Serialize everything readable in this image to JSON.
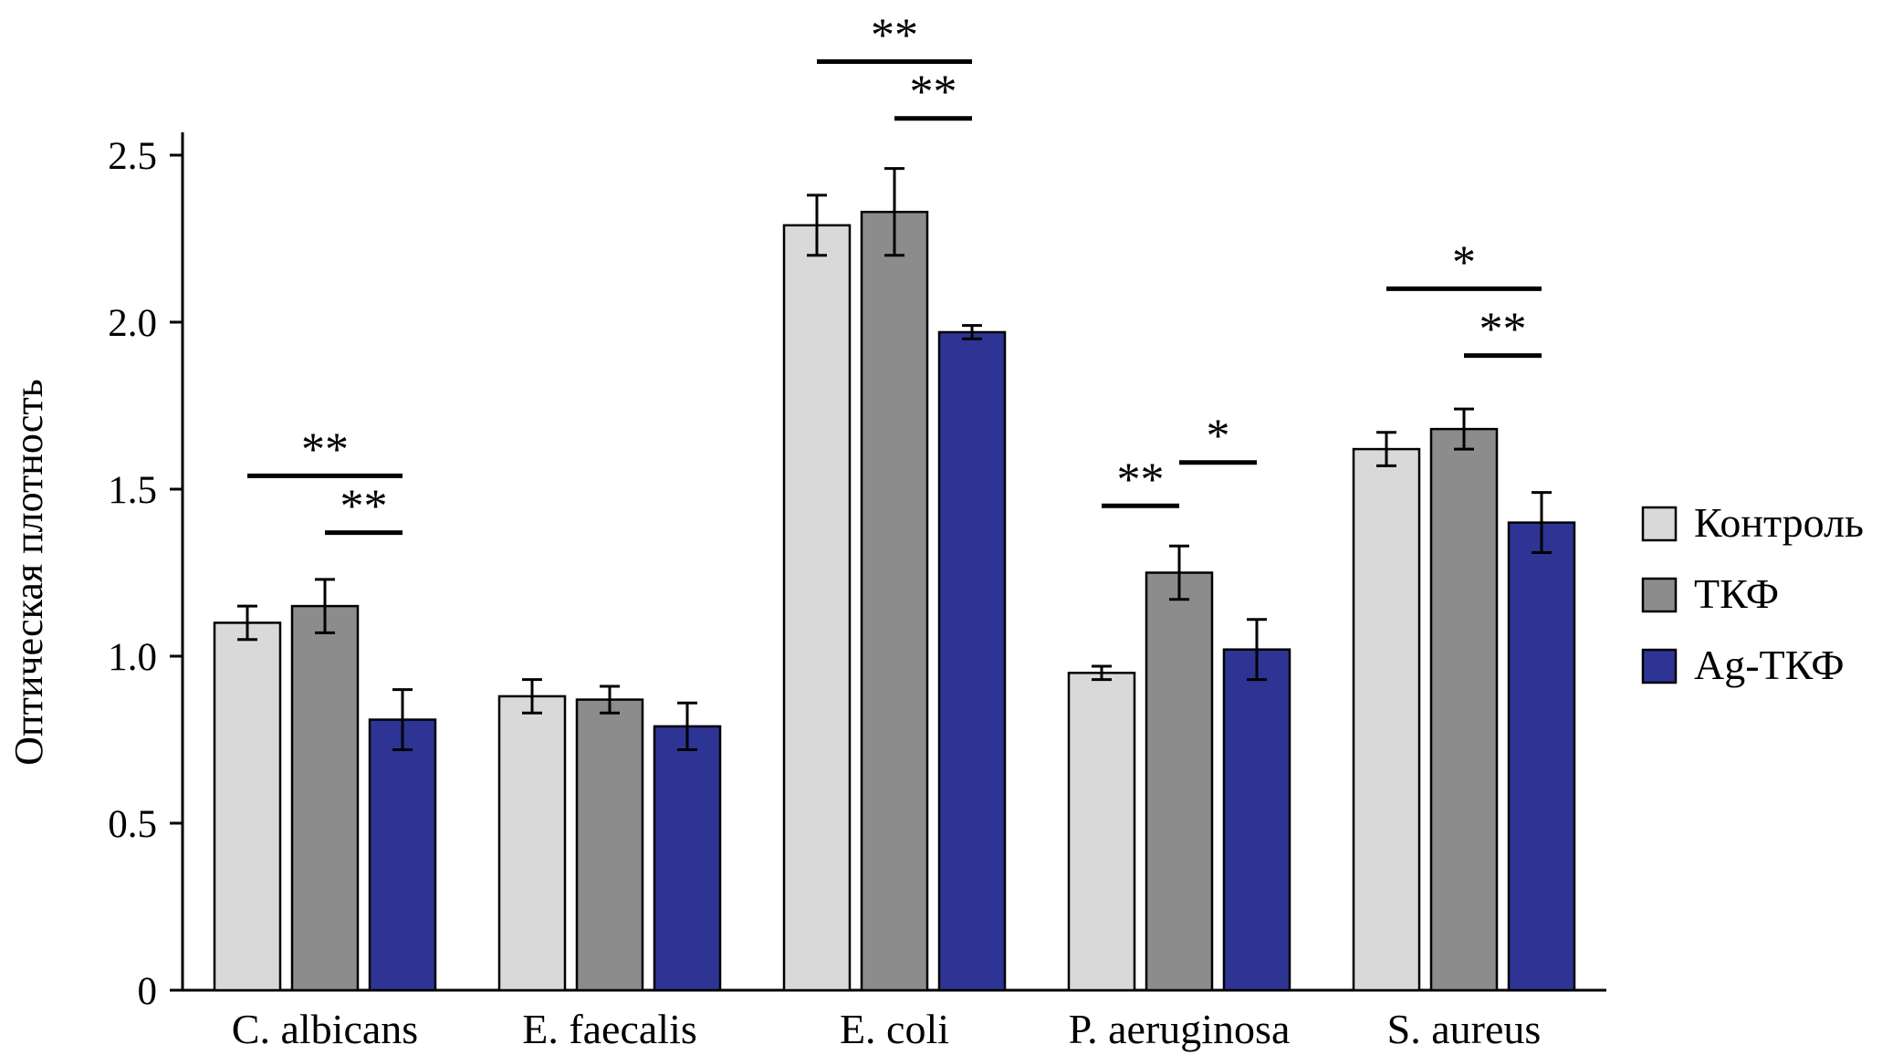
{
  "figure": {
    "background": "#ffffff",
    "axis_color": "#000000"
  },
  "chart_data": {
    "type": "bar",
    "title": "",
    "xlabel": "",
    "ylabel": "Оптическая плотность",
    "ylim": [
      0,
      2.5
    ],
    "yticks": [
      0,
      0.5,
      1.0,
      1.5,
      2.0,
      2.5
    ],
    "ytick_labels": [
      "0",
      "0.5",
      "1.0",
      "1.5",
      "2.0",
      "2.5"
    ],
    "grid": false,
    "legend_position": "right",
    "categories": [
      "C. albicans",
      "E. faecalis",
      "E. coli",
      "P. aeruginosa",
      "S. aureus"
    ],
    "series": [
      {
        "name": "Контроль",
        "color": "#d9d9d9",
        "values": [
          1.1,
          0.88,
          2.29,
          0.95,
          1.62
        ],
        "errors": [
          0.05,
          0.05,
          0.09,
          0.02,
          0.05
        ]
      },
      {
        "name": "ТКФ",
        "color": "#8c8c8c",
        "values": [
          1.15,
          0.87,
          2.33,
          1.25,
          1.68
        ],
        "errors": [
          0.08,
          0.04,
          0.13,
          0.08,
          0.06
        ]
      },
      {
        "name": "Ag-ТКФ",
        "color": "#2d3494",
        "values": [
          0.81,
          0.79,
          1.97,
          1.02,
          1.4
        ],
        "errors": [
          0.09,
          0.07,
          0.02,
          0.09,
          0.09
        ]
      }
    ],
    "significance": [
      {
        "category": 0,
        "from": 0,
        "to": 2,
        "y": 1.54,
        "label": "**"
      },
      {
        "category": 0,
        "from": 1,
        "to": 2,
        "y": 1.37,
        "label": "**"
      },
      {
        "category": 2,
        "from": 0,
        "to": 2,
        "y": 2.78,
        "label": "**"
      },
      {
        "category": 2,
        "from": 1,
        "to": 2,
        "y": 2.61,
        "label": "**"
      },
      {
        "category": 3,
        "from": 0,
        "to": 1,
        "y": 1.45,
        "label": "**"
      },
      {
        "category": 3,
        "from": 1,
        "to": 2,
        "y": 1.58,
        "label": "*"
      },
      {
        "category": 4,
        "from": 0,
        "to": 2,
        "y": 2.1,
        "label": "*"
      },
      {
        "category": 4,
        "from": 1,
        "to": 2,
        "y": 1.9,
        "label": "**"
      }
    ]
  }
}
